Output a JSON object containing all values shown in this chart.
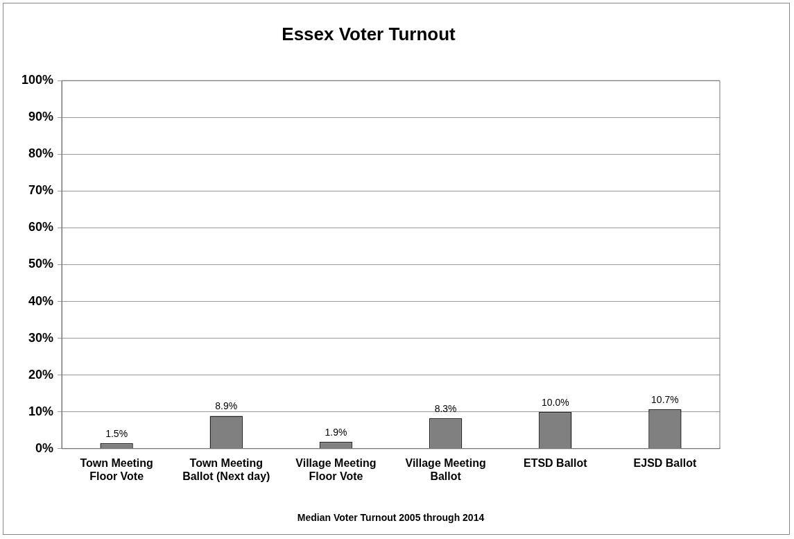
{
  "chart_data": {
    "type": "bar",
    "title": "Essex Voter Turnout",
    "xlabel": "Median Voter Turnout 2005 through 2014",
    "categories": [
      "Town Meeting Floor Vote",
      "Town Meeting Ballot (Next day)",
      "Village Meeting Floor Vote",
      "Village Meeting Ballot",
      "ETSD Ballot",
      "EJSD Ballot"
    ],
    "values": [
      1.5,
      8.9,
      1.9,
      8.3,
      10.0,
      10.7
    ],
    "value_labels": [
      "1.5%",
      "8.9%",
      "1.9%",
      "8.3%",
      "10.0%",
      "10.7%"
    ],
    "color": "#808080",
    "ylim": [
      0,
      100
    ],
    "yticks": [
      {
        "value": 0,
        "label": "0%"
      },
      {
        "value": 10,
        "label": "10%"
      },
      {
        "value": 20,
        "label": "20%"
      },
      {
        "value": 30,
        "label": "30%"
      },
      {
        "value": 40,
        "label": "40%"
      },
      {
        "value": 50,
        "label": "50%"
      },
      {
        "value": 60,
        "label": "60%"
      },
      {
        "value": 70,
        "label": "70%"
      },
      {
        "value": 80,
        "label": "80%"
      },
      {
        "value": 90,
        "label": "90%"
      },
      {
        "value": 100,
        "label": "100%"
      }
    ],
    "grid": "y",
    "legend": false
  }
}
